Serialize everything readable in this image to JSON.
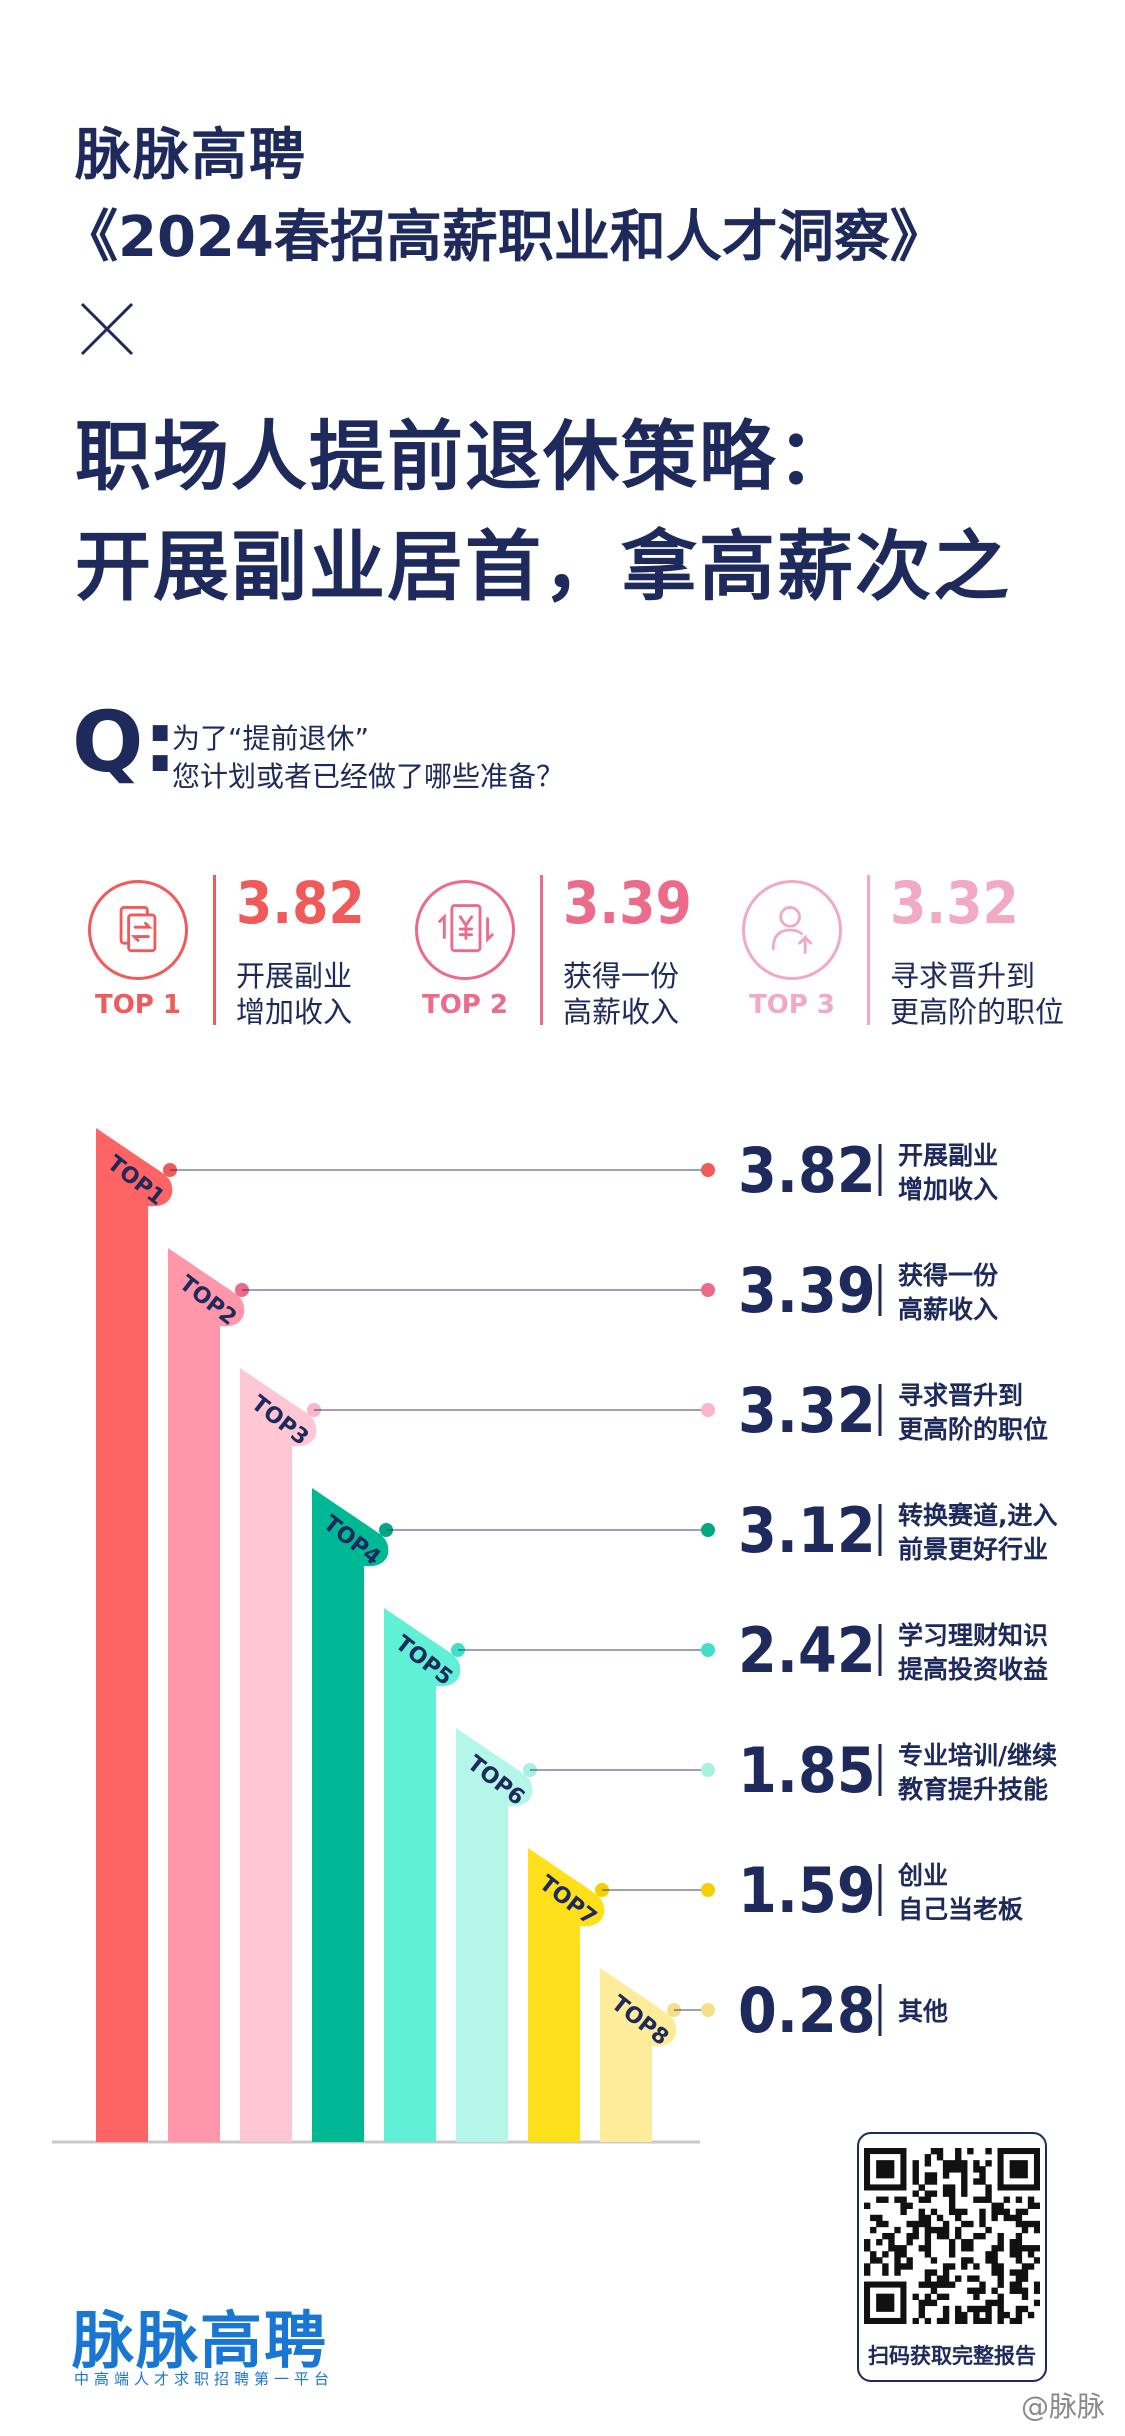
{
  "header": {
    "brand": "脉脉高聘",
    "report": "《2024春招高薪职业和人才洞察》",
    "times_mark": "×",
    "headline_lines": [
      "职场人提前退休策略：",
      "开展副业居首，拿高薪次之"
    ]
  },
  "question": {
    "mark": "Q:",
    "lines": [
      "为了“提前退休”",
      "您计划或者已经做了哪些准备？"
    ]
  },
  "top_cards": [
    {
      "rank": "TOP 1",
      "value": "3.82",
      "label_lines": [
        "开展副业",
        "增加收入"
      ],
      "color": "#f05a5a",
      "icon": "transfer-document-icon"
    },
    {
      "rank": "TOP 2",
      "value": "3.39",
      "label_lines": [
        "获得一份",
        "高薪收入"
      ],
      "color": "#ec6b8a",
      "icon": "yuan-document-icon"
    },
    {
      "rank": "TOP 3",
      "value": "3.32",
      "label_lines": [
        "寻求晋升到",
        "更高阶的职位"
      ],
      "color": "#f2aac2",
      "icon": "person-up-arrow-icon"
    }
  ],
  "chart_data": {
    "type": "bar",
    "title": "",
    "xlabel": "",
    "ylabel": "",
    "ylim": [
      0,
      4
    ],
    "categories": [
      "TOP1",
      "TOP2",
      "TOP3",
      "TOP4",
      "TOP5",
      "TOP6",
      "TOP7",
      "TOP8"
    ],
    "label_lines": [
      [
        "开展副业",
        "增加收入"
      ],
      [
        "获得一份",
        "高薪收入"
      ],
      [
        "寻求晋升到",
        "更高阶的职位"
      ],
      [
        "转换赛道,进入",
        "前景更好行业"
      ],
      [
        "学习理财知识",
        "提高投资收益"
      ],
      [
        "专业培训/继续",
        "教育提升技能"
      ],
      [
        "创业",
        "自己当老板"
      ],
      [
        "其他"
      ]
    ],
    "values": [
      3.82,
      3.39,
      3.32,
      3.12,
      2.42,
      1.85,
      1.59,
      0.28
    ],
    "value_labels": [
      "3.82",
      "3.39",
      "3.32",
      "3.12",
      "2.42",
      "1.85",
      "1.59",
      "0.28"
    ],
    "colors": [
      "#ff6464",
      "#ff96aa",
      "#ffc6d4",
      "#00b894",
      "#5ff0d6",
      "#b4f7ea",
      "#ffe01a",
      "#ffec9a"
    ],
    "dot_colors": [
      "#f05a5a",
      "#ec6b8a",
      "#f8b6c8",
      "#00a884",
      "#3fe0c6",
      "#a8f0e2",
      "#f5d000",
      "#f5e08a"
    ],
    "legend": "none",
    "grid": false
  },
  "footer": {
    "brand": "脉脉高聘",
    "slogan": "中高端人才求职招聘第一平台",
    "qr_caption": "扫码获取完整报告",
    "watermark": "@脉脉"
  }
}
